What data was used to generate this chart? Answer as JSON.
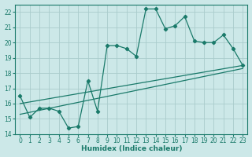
{
  "xlabel": "Humidex (Indice chaleur)",
  "bg_color": "#cce8e8",
  "grid_color": "#aacccc",
  "line_color": "#1a7a6a",
  "xmin": -0.5,
  "xmax": 23.5,
  "ymin": 14,
  "ymax": 22.5,
  "yticks": [
    14,
    15,
    16,
    17,
    18,
    19,
    20,
    21,
    22
  ],
  "xticks": [
    0,
    1,
    2,
    3,
    4,
    5,
    6,
    7,
    8,
    9,
    10,
    11,
    12,
    13,
    14,
    15,
    16,
    17,
    18,
    19,
    20,
    21,
    22,
    23
  ],
  "series1_x": [
    0,
    1,
    2,
    3,
    4,
    5,
    6,
    7,
    8,
    9,
    10,
    11,
    12,
    13,
    14,
    15,
    16,
    17,
    18,
    19,
    20,
    21,
    22,
    23
  ],
  "series1_y": [
    16.5,
    15.1,
    15.7,
    15.7,
    15.5,
    14.4,
    14.5,
    17.5,
    15.5,
    19.8,
    19.8,
    19.6,
    19.1,
    22.2,
    22.2,
    20.9,
    21.1,
    21.7,
    20.1,
    20.0,
    20.0,
    20.5,
    19.6,
    18.5
  ],
  "series2_x": [
    0,
    23
  ],
  "series2_y": [
    16.0,
    18.5
  ],
  "series3_x": [
    0,
    23
  ],
  "series3_y": [
    15.3,
    18.3
  ],
  "xlabel_fontsize": 6.5,
  "tick_fontsize": 5.5
}
